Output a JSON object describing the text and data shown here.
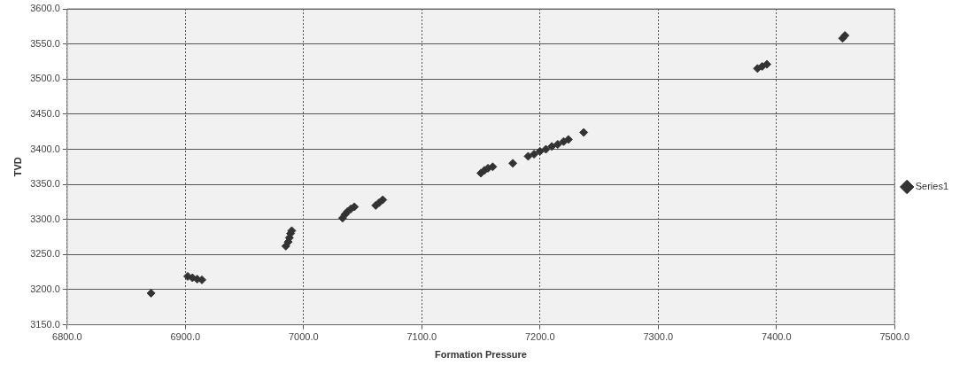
{
  "chart_data": {
    "type": "scatter",
    "xlabel": "Formation Pressure",
    "ylabel": "TVD",
    "legend": "right",
    "grid": true,
    "marker": "diamond",
    "xlim": [
      6800,
      7500
    ],
    "xticks": [
      {
        "value": 6800,
        "label": "6800.0"
      },
      {
        "value": 6900,
        "label": "6900.0"
      },
      {
        "value": 7000,
        "label": "7000.0"
      },
      {
        "value": 7100,
        "label": "7100.0"
      },
      {
        "value": 7200,
        "label": "7200.0"
      },
      {
        "value": 7300,
        "label": "7300.0"
      },
      {
        "value": 7400,
        "label": "7400.0"
      },
      {
        "value": 7500,
        "label": "7500.0"
      }
    ],
    "ylim": [
      3150,
      3600
    ],
    "yticks": [
      {
        "value": 3150,
        "label": "3150.0"
      },
      {
        "value": 3200,
        "label": "3200.0"
      },
      {
        "value": 3250,
        "label": "3250.0"
      },
      {
        "value": 3300,
        "label": "3300.0"
      },
      {
        "value": 3350,
        "label": "3350.0"
      },
      {
        "value": 3400,
        "label": "3400.0"
      },
      {
        "value": 3450,
        "label": "3450.0"
      },
      {
        "value": 3500,
        "label": "3500.0"
      },
      {
        "value": 3550,
        "label": "3550.0"
      },
      {
        "value": 3600,
        "label": "3600.0"
      }
    ],
    "series": [
      {
        "name": "Series1",
        "color": "#333333",
        "x": [
          6871,
          6902,
          6906,
          6910,
          6914,
          6985,
          6987,
          6988,
          6989,
          6990,
          7033,
          7035,
          7037,
          7040,
          7043,
          7061,
          7064,
          7067,
          7150,
          7153,
          7156,
          7160,
          7177,
          7190,
          7195,
          7200,
          7205,
          7210,
          7215,
          7220,
          7224,
          7237,
          7384,
          7388,
          7392,
          7456,
          7458
        ],
        "values": [
          3195,
          3219,
          3217,
          3215,
          3214,
          3262,
          3268,
          3274,
          3280,
          3284,
          3302,
          3307,
          3311,
          3315,
          3318,
          3320,
          3324,
          3328,
          3366,
          3370,
          3373,
          3375,
          3380,
          3390,
          3393,
          3397,
          3400,
          3404,
          3407,
          3411,
          3414,
          3424,
          3515,
          3518,
          3521,
          3558,
          3562
        ]
      }
    ]
  }
}
